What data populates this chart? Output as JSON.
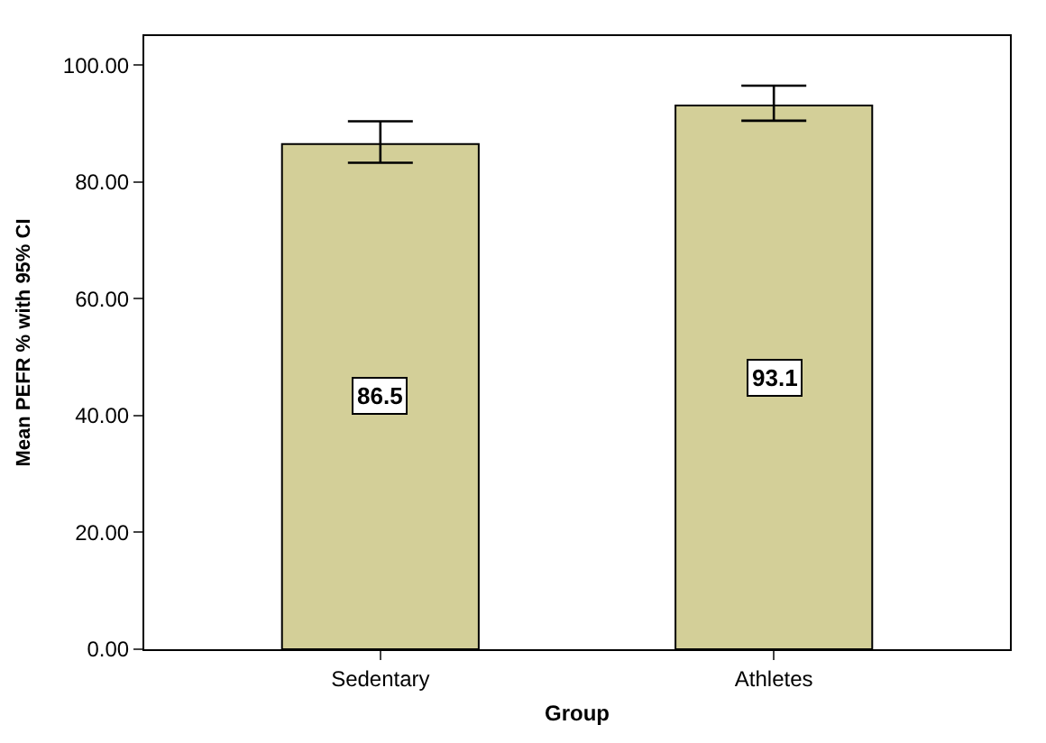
{
  "chart_data": {
    "type": "bar",
    "xlabel": "Group",
    "ylabel": "Mean PEFR % with 95% CI",
    "categories": [
      "Sedentary",
      "Athletes"
    ],
    "values": [
      86.5,
      93.1
    ],
    "color": "#d3cf98",
    "errors": [
      [
        83.3,
        90.4
      ],
      [
        90.5,
        96.5
      ]
    ],
    "ylim": [
      0,
      105
    ],
    "yticks": [
      {
        "value": 0,
        "label": "0.00"
      },
      {
        "value": 20,
        "label": "20.00"
      },
      {
        "value": 40,
        "label": "40.00"
      },
      {
        "value": 60,
        "label": "60.00"
      },
      {
        "value": 80,
        "label": "80.00"
      },
      {
        "value": 100,
        "label": "100.00"
      }
    ],
    "data_labels": true
  }
}
